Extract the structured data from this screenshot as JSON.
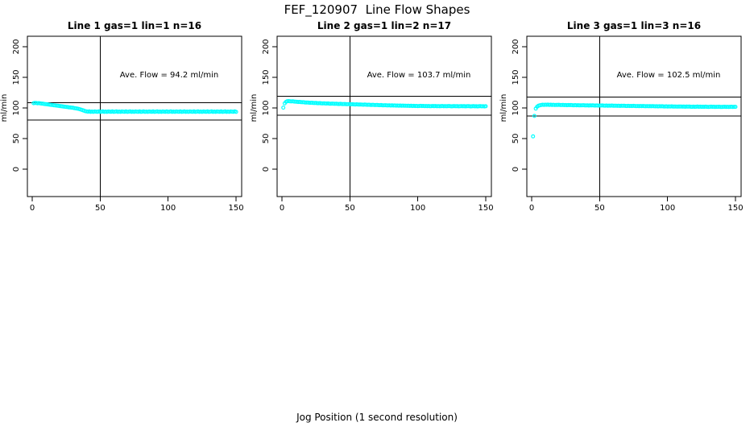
{
  "figure": {
    "title": "FEF_120907  Line Flow Shapes",
    "outer_xlabel": "Jog Position (1 second resolution)",
    "background_color": "#ffffff",
    "point_color": "#00ffff",
    "line_color": "#000000"
  },
  "chart_data": [
    {
      "type": "scatter",
      "title": "Line 1 gas=1 lin=1 n=16",
      "ylabel": "ml/min",
      "annotation": "Ave. Flow =  94.2  ml/min",
      "ave_flow_ml_min": 94.2,
      "x_ticks": [
        0,
        50,
        100,
        150
      ],
      "y_ticks": [
        0,
        50,
        100,
        150,
        200
      ],
      "xlim": [
        -6,
        156
      ],
      "ylim": [
        -45,
        217
      ],
      "vline_x": 50,
      "hlines": [
        108.3,
        80.1
      ],
      "x_start": 1,
      "y": [
        107.8,
        108.2,
        108.0,
        107.6,
        107.9,
        107.4,
        107.1,
        106.8,
        106.5,
        106.2,
        105.9,
        105.6,
        105.3,
        105.0,
        104.7,
        104.4,
        104.1,
        103.8,
        103.5,
        103.2,
        102.9,
        102.6,
        102.3,
        102.0,
        101.7,
        101.4,
        101.1,
        100.8,
        100.5,
        100.2,
        99.8,
        99.4,
        99.0,
        98.5,
        97.9,
        97.2,
        96.4,
        95.6,
        94.8,
        94.3,
        93.9,
        94.3,
        93.6,
        94.1,
        93.5,
        94.2,
        93.9,
        93.7,
        94.3,
        93.6,
        93.9,
        94.3,
        93.6,
        94.1,
        93.5,
        94.2,
        93.9,
        93.7,
        94.3,
        93.6,
        93.9,
        94.3,
        93.6,
        94.1,
        93.5,
        94.2,
        93.9,
        93.7,
        94.3,
        93.6,
        93.9,
        94.3,
        93.6,
        94.1,
        93.5,
        94.2,
        93.9,
        93.7,
        94.3,
        93.6,
        93.9,
        94.3,
        93.6,
        94.1,
        93.5,
        94.2,
        93.9,
        93.7,
        94.3,
        93.6,
        93.9,
        94.3,
        93.6,
        94.1,
        93.5,
        94.2,
        93.9,
        93.7,
        94.3,
        93.6,
        93.9,
        94.3,
        93.6,
        94.1,
        93.5,
        94.2,
        93.9,
        93.7,
        94.3,
        93.6,
        93.9,
        94.3,
        93.6,
        94.1,
        93.5,
        94.2,
        93.9,
        93.7,
        94.3,
        93.6,
        93.9,
        94.3,
        93.6,
        94.1,
        93.5,
        94.2,
        93.9,
        93.7,
        94.3,
        93.6,
        93.9,
        94.3,
        93.6,
        94.1,
        93.5,
        94.2,
        93.9,
        93.7,
        94.3,
        93.6,
        93.9,
        94.3,
        93.6,
        94.1,
        93.5,
        94.2,
        93.9,
        93.7,
        94.3,
        93.6
      ]
    },
    {
      "type": "scatter",
      "title": "Line 2 gas=1 lin=2 n=17",
      "ylabel": "ml/min",
      "annotation": "Ave. Flow =  103.7  ml/min",
      "ave_flow_ml_min": 103.7,
      "x_ticks": [
        0,
        50,
        100,
        150
      ],
      "y_ticks": [
        0,
        50,
        100,
        150,
        200
      ],
      "xlim": [
        -6,
        156
      ],
      "ylim": [
        -45,
        217
      ],
      "vline_x": 50,
      "hlines": [
        119.3,
        88.1
      ],
      "x_start": 1,
      "y": [
        100.5,
        107.5,
        110.0,
        111.0,
        111.2,
        110.8,
        110.6,
        110.9,
        110.4,
        110.2,
        110.0,
        109.8,
        109.9,
        109.5,
        109.3,
        109.4,
        109.0,
        108.8,
        108.9,
        108.6,
        108.4,
        108.5,
        108.2,
        108.0,
        108.1,
        107.8,
        107.7,
        107.9,
        107.5,
        107.4,
        107.6,
        107.3,
        107.2,
        107.4,
        107.0,
        106.9,
        107.1,
        106.8,
        106.7,
        106.9,
        106.6,
        106.5,
        106.7,
        106.4,
        106.3,
        106.5,
        106.2,
        106.1,
        106.3,
        106.0,
        105.9,
        106.1,
        105.8,
        105.7,
        105.9,
        105.6,
        105.5,
        105.7,
        105.4,
        105.3,
        105.5,
        105.2,
        105.1,
        105.3,
        105.0,
        104.9,
        105.1,
        104.8,
        104.7,
        104.9,
        104.6,
        104.5,
        104.7,
        104.4,
        104.3,
        104.5,
        104.2,
        104.1,
        104.3,
        104.0,
        104.2,
        103.9,
        104.1,
        103.8,
        104.0,
        103.7,
        103.9,
        103.6,
        103.8,
        103.5,
        103.7,
        103.4,
        103.6,
        103.3,
        103.5,
        103.2,
        103.4,
        103.1,
        103.3,
        103.0,
        103.2,
        103.4,
        103.1,
        103.3,
        103.0,
        103.2,
        102.9,
        103.1,
        102.8,
        103.0,
        103.2,
        102.9,
        103.1,
        102.8,
        103.0,
        102.7,
        102.9,
        103.1,
        102.8,
        103.0,
        102.7,
        102.9,
        103.1,
        102.8,
        102.6,
        102.9,
        103.0,
        102.7,
        102.9,
        102.6,
        102.8,
        103.0,
        102.7,
        102.9,
        102.6,
        102.8,
        103.0,
        102.7,
        102.5,
        102.8,
        102.9,
        102.6,
        102.8,
        102.5,
        102.7,
        102.9,
        102.6,
        102.8,
        102.5,
        102.7
      ]
    },
    {
      "type": "scatter",
      "title": "Line 3 gas=1 lin=3 n=16",
      "ylabel": "ml/min",
      "annotation": "Ave. Flow =  102.5  ml/min",
      "ave_flow_ml_min": 102.5,
      "x_ticks": [
        0,
        50,
        100,
        150
      ],
      "y_ticks": [
        0,
        50,
        100,
        150,
        200
      ],
      "xlim": [
        -6,
        156
      ],
      "ylim": [
        -45,
        217
      ],
      "vline_x": 50,
      "hlines": [
        117.9,
        87.1
      ],
      "x_start": 1,
      "y": [
        53.5,
        87.0,
        99.0,
        102.0,
        103.5,
        104.3,
        104.8,
        105.2,
        105.0,
        105.3,
        105.1,
        105.4,
        105.0,
        105.2,
        104.9,
        105.1,
        104.8,
        105.0,
        104.9,
        105.1,
        104.8,
        104.7,
        104.9,
        104.6,
        104.8,
        104.5,
        104.7,
        104.6,
        104.8,
        104.5,
        104.4,
        104.6,
        104.3,
        104.5,
        104.2,
        104.4,
        104.3,
        104.5,
        104.2,
        104.1,
        104.3,
        104.0,
        104.2,
        104.1,
        104.3,
        104.0,
        103.9,
        104.1,
        103.8,
        104.0,
        103.9,
        104.1,
        103.8,
        103.7,
        103.9,
        103.6,
        103.8,
        103.7,
        103.9,
        103.6,
        103.5,
        103.7,
        103.4,
        103.6,
        103.3,
        103.5,
        103.4,
        103.6,
        103.3,
        103.2,
        103.4,
        103.1,
        103.3,
        103.2,
        103.4,
        103.1,
        103.0,
        103.2,
        102.9,
        103.1,
        103.0,
        103.2,
        102.9,
        102.8,
        103.0,
        102.7,
        102.9,
        102.8,
        103.0,
        102.7,
        102.6,
        102.8,
        102.5,
        102.7,
        102.6,
        102.8,
        102.5,
        102.4,
        102.6,
        102.3,
        102.5,
        102.4,
        102.6,
        102.3,
        102.2,
        102.4,
        102.1,
        102.3,
        102.2,
        102.4,
        102.1,
        102.3,
        102.0,
        102.2,
        102.1,
        102.3,
        102.0,
        101.9,
        102.1,
        101.8,
        102.0,
        102.2,
        101.9,
        102.1,
        101.8,
        102.0,
        101.9,
        102.1,
        101.8,
        101.7,
        101.9,
        102.1,
        101.8,
        102.0,
        101.7,
        101.9,
        101.8,
        102.0,
        101.7,
        101.6,
        101.8,
        102.0,
        101.7,
        101.9,
        101.6,
        101.8,
        102.0,
        101.7,
        101.9,
        101.8
      ]
    }
  ]
}
